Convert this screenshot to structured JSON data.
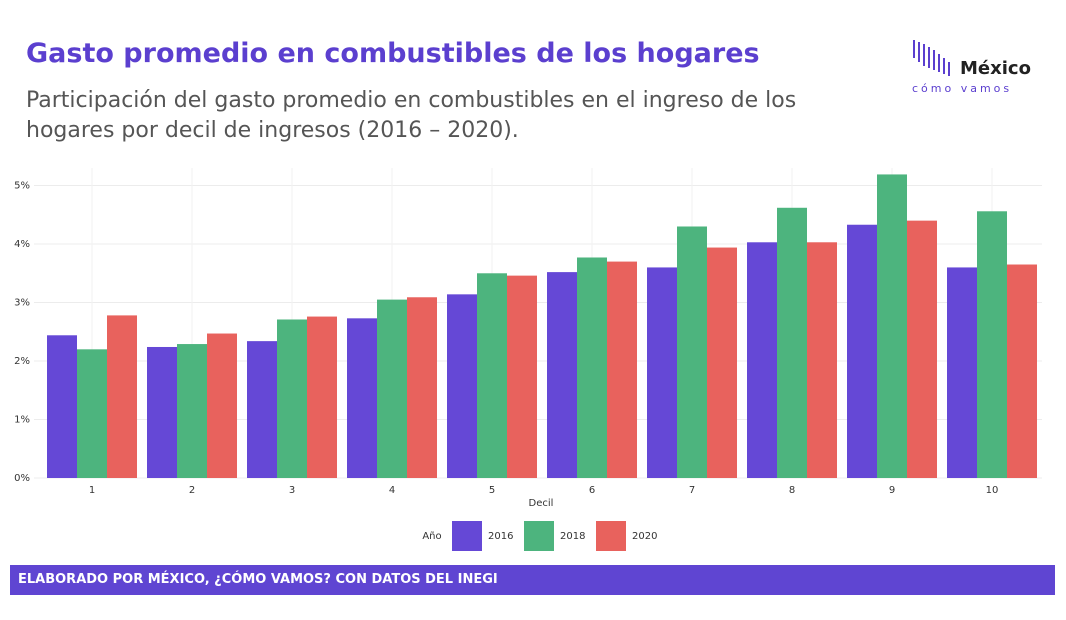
{
  "header": {
    "logo_top": "México",
    "logo_bottom": "cómo vamos"
  },
  "chart_data": {
    "type": "bar",
    "title": "Gasto promedio en combustibles de los hogares",
    "subtitle": "Participación del gasto promedio en combustibles en el ingreso de los hogares por decil de ingresos (2016 – 2020).",
    "x_label": "Decil",
    "legend_title": "Año",
    "categories": [
      "1",
      "2",
      "3",
      "4",
      "5",
      "6",
      "7",
      "8",
      "9",
      "10"
    ],
    "series": [
      {
        "name": "2016",
        "color": "#6548d6",
        "values": [
          2.44,
          2.24,
          2.34,
          2.73,
          3.14,
          3.52,
          3.6,
          4.03,
          4.33,
          3.6
        ]
      },
      {
        "name": "2018",
        "color": "#4db47e",
        "values": [
          2.2,
          2.29,
          2.71,
          3.05,
          3.5,
          3.77,
          4.3,
          4.62,
          5.19,
          4.56
        ]
      },
      {
        "name": "2020",
        "color": "#e8625d",
        "values": [
          2.78,
          2.47,
          2.76,
          3.09,
          3.46,
          3.7,
          3.94,
          4.03,
          4.4,
          3.65
        ]
      }
    ],
    "ylim": [
      0,
      5.3
    ],
    "yticks": [
      {
        "value": 0,
        "label": "0%"
      },
      {
        "value": 1,
        "label": "1%"
      },
      {
        "value": 2,
        "label": "2%"
      },
      {
        "value": 3,
        "label": "3%"
      },
      {
        "value": 4,
        "label": "4%"
      },
      {
        "value": 5,
        "label": "5%"
      }
    ],
    "grid": true
  },
  "footer": {
    "text": "ELABORADO POR MÉXICO, ¿CÓMO VAMOS? CON DATOS DEL INEGI"
  }
}
